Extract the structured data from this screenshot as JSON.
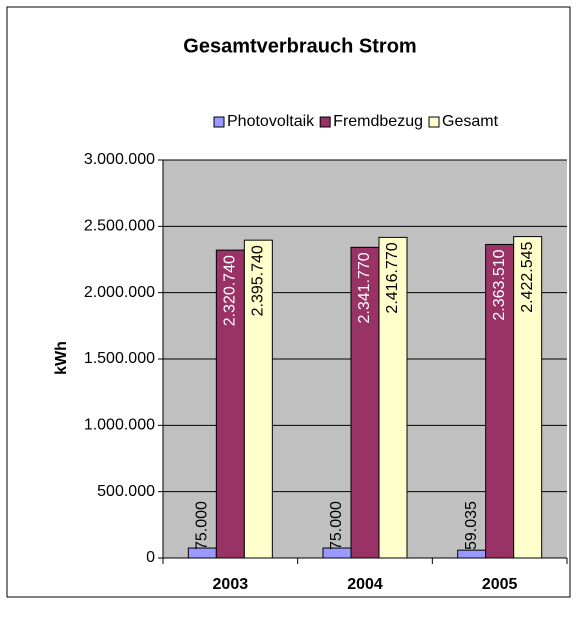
{
  "chart_data": {
    "type": "bar",
    "title": "Gesamtverbrauch Strom",
    "y_label": "kWh",
    "categories": [
      "2003",
      "2004",
      "2005"
    ],
    "series": [
      {
        "name": "Photovoltaik",
        "color": "#9999ff",
        "label_color": "#000000",
        "values": [
          75000,
          75000,
          59035
        ],
        "value_labels": [
          "75.000",
          "75.000",
          "59.035"
        ]
      },
      {
        "name": "Fremdbezug",
        "color": "#993366",
        "label_color": "#ffffff",
        "values": [
          2320740,
          2341770,
          2363510
        ],
        "value_labels": [
          "2.320.740",
          "2.341.770",
          "2.363.510"
        ]
      },
      {
        "name": "Gesamt",
        "color": "#ffffcc",
        "label_color": "#000000",
        "values": [
          2395740,
          2416770,
          2422545
        ],
        "value_labels": [
          "2.395.740",
          "2.416.770",
          "2.422.545"
        ]
      }
    ],
    "ylim": [
      0,
      3000000
    ],
    "yticks": [
      {
        "value": 0,
        "label": "0"
      },
      {
        "value": 500000,
        "label": "500.000"
      },
      {
        "value": 1000000,
        "label": "1.000.000"
      },
      {
        "value": 1500000,
        "label": "1.500.000"
      },
      {
        "value": 2000000,
        "label": "2.000.000"
      },
      {
        "value": 2500000,
        "label": "2.500.000"
      },
      {
        "value": 3000000,
        "label": "3.000.000"
      }
    ],
    "grid": true,
    "plot_background": "#c0c0c0",
    "legend": "top"
  }
}
